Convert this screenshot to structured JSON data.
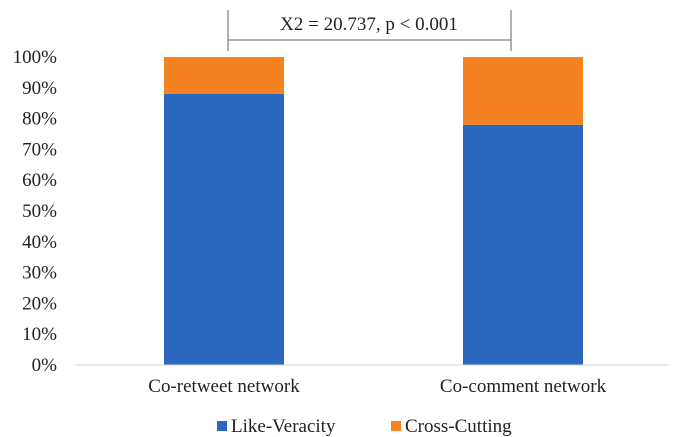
{
  "chart_data": {
    "type": "bar",
    "stacked": true,
    "categories": [
      "Co-retweet network",
      "Co-comment network"
    ],
    "series": [
      {
        "name": "Like-Veracity",
        "values": [
          88,
          78
        ],
        "color": "#2B67BF"
      },
      {
        "name": "Cross-Cutting",
        "values": [
          12,
          22
        ],
        "color": "#F58220"
      }
    ],
    "y_ticks": [
      "0%",
      "10%",
      "20%",
      "30%",
      "40%",
      "50%",
      "60%",
      "70%",
      "80%",
      "90%",
      "100%"
    ],
    "ylim": [
      0,
      100
    ],
    "annotation": "X2 = 20.737, p < 0.001",
    "legend_position": "bottom",
    "grid": false
  }
}
